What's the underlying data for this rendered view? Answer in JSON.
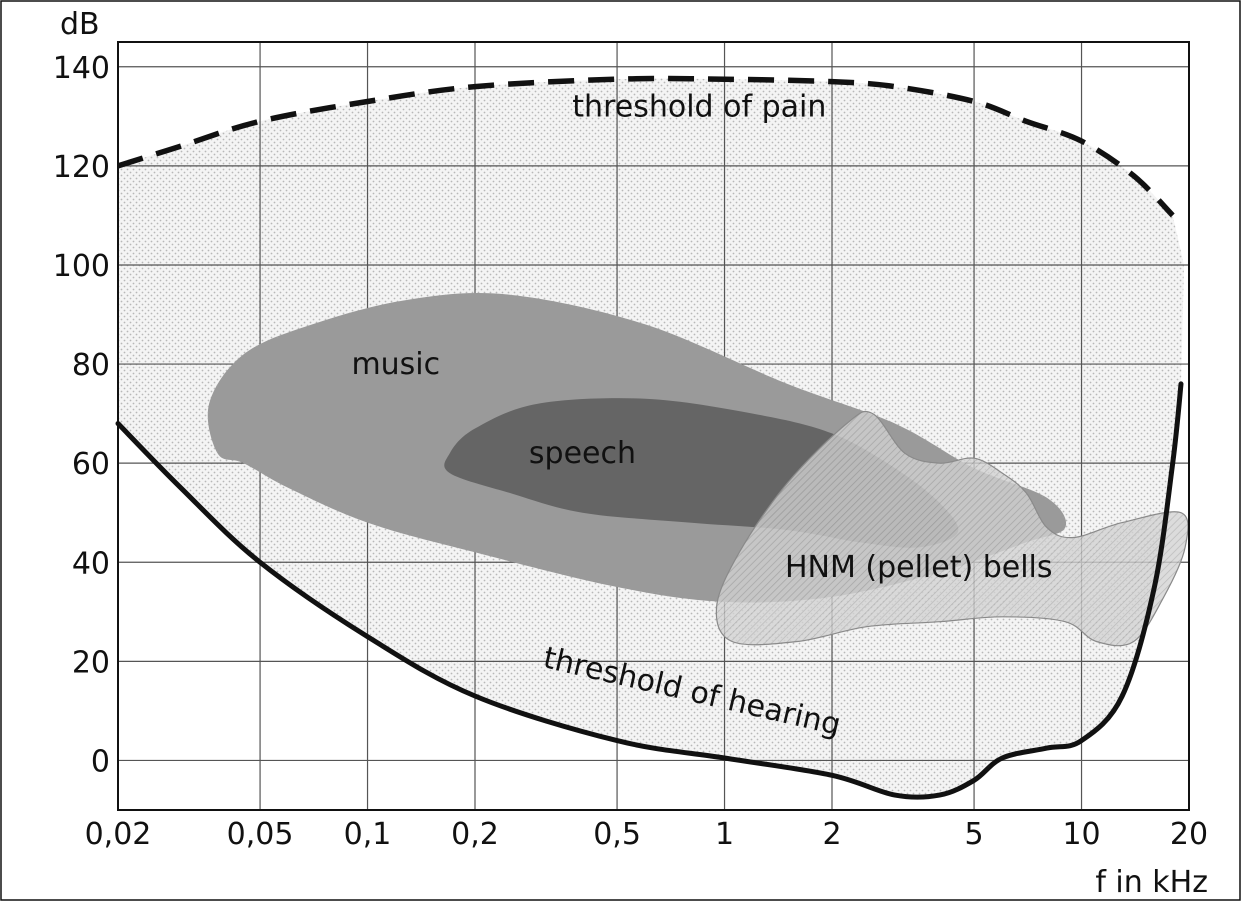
{
  "chart_data": {
    "type": "area",
    "x_scale": "log",
    "xlabel": "f in kHz",
    "ylabel": "dB",
    "xlim": [
      0.02,
      20
    ],
    "ylim": [
      -10,
      145
    ],
    "grid": true,
    "x_ticks": [
      0.02,
      0.05,
      0.1,
      0.2,
      0.5,
      1,
      2,
      5,
      10,
      20
    ],
    "x_tick_labels": [
      "0,02",
      "0,05",
      "0,1",
      "0,2",
      "0,5",
      "1",
      "2",
      "5",
      "10",
      "20"
    ],
    "y_ticks": [
      0,
      20,
      40,
      60,
      80,
      100,
      120,
      140
    ],
    "y_tick_labels": [
      "0",
      "20",
      "40",
      "60",
      "80",
      "100",
      "120",
      "140"
    ],
    "series": [
      {
        "name": "threshold of pain",
        "style": "dashed",
        "color": "#111111",
        "x": [
          0.02,
          0.03,
          0.05,
          0.1,
          0.2,
          0.5,
          1,
          2,
          3,
          5,
          7,
          10,
          14,
          18
        ],
        "y": [
          120,
          124,
          129,
          133,
          136,
          137.5,
          137.5,
          137,
          136,
          133,
          129,
          125,
          118,
          110
        ]
      },
      {
        "name": "threshold of hearing",
        "style": "solid",
        "color": "#111111",
        "x": [
          0.02,
          0.03,
          0.05,
          0.1,
          0.2,
          0.5,
          1,
          2,
          3,
          4,
          5,
          6,
          8,
          10,
          13,
          16,
          18,
          19
        ],
        "y": [
          68,
          55,
          40,
          25,
          13,
          4,
          0.5,
          -3,
          -7,
          -7,
          -4,
          0.5,
          2.5,
          4,
          13,
          35,
          60,
          76
        ]
      }
    ],
    "regions": [
      {
        "name": "music",
        "color": "#9a9a9a",
        "polygon": [
          [
            0.038,
            62
          ],
          [
            0.036,
            72
          ],
          [
            0.045,
            82
          ],
          [
            0.07,
            88
          ],
          [
            0.13,
            93
          ],
          [
            0.25,
            94
          ],
          [
            0.6,
            88
          ],
          [
            1.5,
            76
          ],
          [
            3,
            68
          ],
          [
            5,
            59
          ],
          [
            8,
            53
          ],
          [
            9,
            47
          ],
          [
            7,
            44
          ],
          [
            4,
            38
          ],
          [
            2,
            33
          ],
          [
            1,
            32
          ],
          [
            0.5,
            35
          ],
          [
            0.2,
            42
          ],
          [
            0.1,
            48
          ],
          [
            0.06,
            55
          ],
          [
            0.045,
            60
          ]
        ]
      },
      {
        "name": "speech",
        "color": "#656565",
        "polygon": [
          [
            0.17,
            62
          ],
          [
            0.2,
            67
          ],
          [
            0.3,
            72
          ],
          [
            0.6,
            73
          ],
          [
            1.2,
            70
          ],
          [
            2,
            66
          ],
          [
            3,
            59
          ],
          [
            4,
            52
          ],
          [
            4.5,
            46
          ],
          [
            3.5,
            43
          ],
          [
            2.4,
            44
          ],
          [
            1.5,
            46.5
          ],
          [
            0.8,
            48
          ],
          [
            0.4,
            50
          ],
          [
            0.25,
            54
          ],
          [
            0.17,
            58
          ]
        ]
      },
      {
        "name": "HNM (pellet) bells",
        "color": "#c2c2c2",
        "polygon": [
          [
            1.1,
            42
          ],
          [
            1.5,
            56
          ],
          [
            2.2,
            68
          ],
          [
            2.6,
            70
          ],
          [
            3.2,
            62
          ],
          [
            4,
            60
          ],
          [
            5,
            61
          ],
          [
            6,
            58
          ],
          [
            7,
            54
          ],
          [
            8,
            47
          ],
          [
            9.5,
            45
          ],
          [
            13,
            48
          ],
          [
            19,
            50
          ],
          [
            19.5,
            43
          ],
          [
            17,
            33
          ],
          [
            14,
            24
          ],
          [
            11,
            24
          ],
          [
            9,
            28
          ],
          [
            6,
            29
          ],
          [
            4,
            28
          ],
          [
            2.5,
            27
          ],
          [
            1.6,
            24
          ],
          [
            1.05,
            24
          ],
          [
            0.95,
            31
          ]
        ]
      }
    ],
    "annotations": [
      {
        "text": "threshold of pain",
        "x": 0.85,
        "y": 130
      },
      {
        "text": "music",
        "x": 0.12,
        "y": 78
      },
      {
        "text": "speech",
        "x": 0.4,
        "y": 60
      },
      {
        "text": "HNM (pellet) bells",
        "x": 3.5,
        "y": 37
      },
      {
        "text": "threshold of hearing",
        "x": 0.8,
        "y": 12
      }
    ]
  }
}
